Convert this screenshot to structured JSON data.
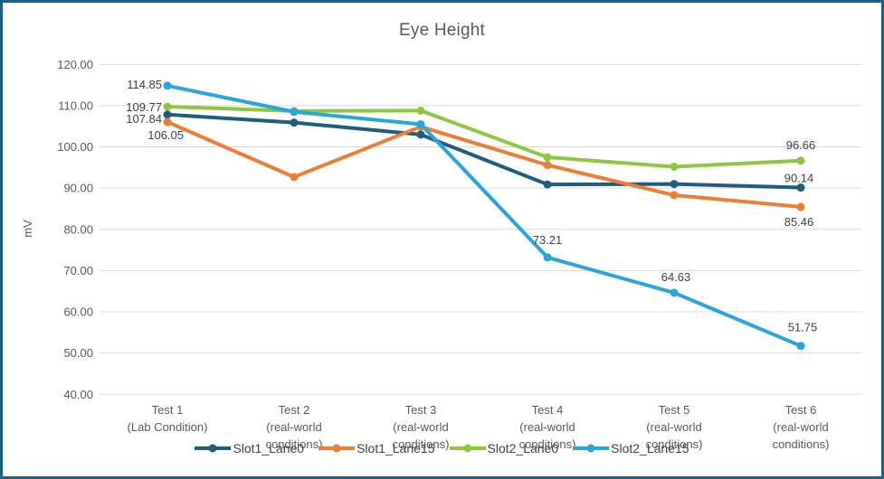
{
  "frame": {
    "border_color": "#1C6083",
    "background": "#FFFFFF"
  },
  "chart_data": {
    "type": "line",
    "title": "Eye Height",
    "xlabel": "",
    "ylabel": "mV",
    "ylim": [
      40,
      120
    ],
    "ytick_step": 10,
    "ytick_labels": [
      "120.00",
      "110.00",
      "100.00",
      "90.00",
      "80.00",
      "70.00",
      "60.00",
      "50.00",
      "40.00"
    ],
    "grid": "horizontal",
    "gridline_color": "#D9D9D9",
    "axis_text_color": "#595959",
    "data_label_color": "#404040",
    "legend_position": "bottom",
    "categories": [
      [
        "Test 1",
        "(Lab Condition)"
      ],
      [
        "Test 2",
        "(real-world",
        "conditions)"
      ],
      [
        "Test 3",
        "(real-world",
        "conditions)"
      ],
      [
        "Test 4",
        "(real-world",
        "conditions)"
      ],
      [
        "Test 5",
        "(real-world",
        "conditions)"
      ],
      [
        "Test 6",
        "(real-world",
        "conditions)"
      ]
    ],
    "series": [
      {
        "name": "Slot1_Lane0",
        "color": "#1F5C7D",
        "values": [
          107.84,
          105.9,
          103.0,
          90.9,
          91.0,
          90.14
        ],
        "point_labels": [
          {
            "index": 0,
            "text": "107.84",
            "anchor": "end",
            "dx": -6,
            "dy": 9
          },
          {
            "index": 5,
            "text": "90.14",
            "anchor": "middle",
            "dx": -2,
            "dy": -6
          }
        ]
      },
      {
        "name": "Slot1_Lane15",
        "color": "#ED7D31",
        "values": [
          106.05,
          92.7,
          104.9,
          95.6,
          88.3,
          85.46
        ],
        "point_labels": [
          {
            "index": 0,
            "text": "106.05",
            "anchor": "end",
            "dx": 18,
            "dy": 19
          },
          {
            "index": 5,
            "text": "85.46",
            "anchor": "middle",
            "dx": -2,
            "dy": 21
          }
        ]
      },
      {
        "name": "Slot2_Lane0",
        "color": "#8EC63F",
        "values": [
          109.77,
          108.7,
          108.8,
          97.5,
          95.2,
          96.66
        ],
        "point_labels": [
          {
            "index": 0,
            "text": "109.77",
            "anchor": "end",
            "dx": -6,
            "dy": 5
          },
          {
            "index": 5,
            "text": "96.66",
            "anchor": "middle",
            "dx": 0,
            "dy": -13
          }
        ]
      },
      {
        "name": "Slot2_Lane15",
        "color": "#29A4DC",
        "values": [
          114.85,
          108.5,
          105.5,
          73.21,
          64.63,
          51.75
        ],
        "point_labels": [
          {
            "index": 0,
            "text": "114.85",
            "anchor": "end",
            "dx": -6,
            "dy": 3
          },
          {
            "index": 3,
            "text": "73.21",
            "anchor": "middle",
            "dx": 0,
            "dy": -15
          },
          {
            "index": 4,
            "text": "64.63",
            "anchor": "middle",
            "dx": 2,
            "dy": -13
          },
          {
            "index": 5,
            "text": "51.75",
            "anchor": "middle",
            "dx": 2,
            "dy": -16
          }
        ]
      }
    ]
  }
}
